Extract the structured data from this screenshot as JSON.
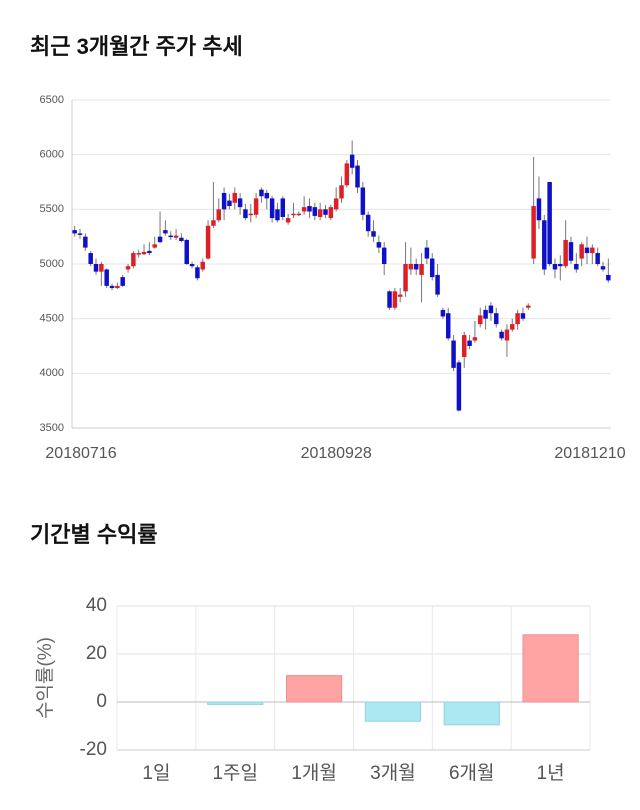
{
  "chart_data": [
    {
      "type": "candlestick",
      "title": "최근 3개월간 주가 추세",
      "categories": [
        "20180716",
        null,
        null,
        null,
        null,
        null,
        null,
        null,
        null,
        null,
        null,
        null,
        null,
        null,
        null,
        null,
        null,
        null,
        null,
        null,
        null,
        null,
        null,
        null,
        null,
        null,
        null,
        null,
        null,
        null,
        null,
        null,
        null,
        null,
        null,
        null,
        null,
        null,
        null,
        null,
        null,
        null,
        null,
        null,
        null,
        null,
        null,
        null,
        null,
        "20180928",
        null,
        null,
        null,
        null,
        null,
        null,
        null,
        null,
        null,
        null,
        null,
        null,
        null,
        null,
        null,
        null,
        null,
        null,
        null,
        null,
        null,
        null,
        null,
        null,
        null,
        null,
        null,
        null,
        null,
        null,
        null,
        null,
        null,
        null,
        null,
        null,
        null,
        null,
        null,
        null,
        null,
        null,
        null,
        null,
        null,
        null,
        null,
        null,
        null,
        null,
        "20181210"
      ],
      "open": [
        5310,
        5280,
        5250,
        5100,
        5000,
        4930,
        4950,
        4800,
        4780,
        4880,
        4950,
        4980,
        5100,
        5090,
        5120,
        5150,
        5250,
        5310,
        5260,
        5240,
        5240,
        5220,
        5000,
        4970,
        4950,
        5050,
        5350,
        5400,
        5650,
        5580,
        5560,
        5600,
        5500,
        5450,
        5450,
        5680,
        5650,
        5600,
        5500,
        5600,
        5380,
        5450,
        5460,
        5480,
        5530,
        5520,
        5430,
        5500,
        5420,
        5500,
        5600,
        5720,
        6000,
        5900,
        5700,
        5450,
        5300,
        5200,
        5150,
        4750,
        4600,
        4700,
        4750,
        4950,
        5000,
        4900,
        5150,
        5050,
        4900,
        4580,
        4550,
        4300,
        4100,
        4150,
        4300,
        4300,
        4450,
        4580,
        4620,
        4550,
        4380,
        4300,
        4400,
        4450,
        4550,
        4600,
        5050,
        5600,
        5400,
        5750,
        5000,
        5000,
        4980,
        5200,
        5000,
        5050,
        5150,
        5100,
        5100,
        4980,
        4900
      ],
      "high": [
        5350,
        5320,
        5280,
        5120,
        5050,
        5020,
        4960,
        4820,
        4830,
        4900,
        5000,
        5120,
        5130,
        5180,
        5200,
        5250,
        5480,
        5400,
        5300,
        5320,
        5280,
        5230,
        5020,
        4990,
        5050,
        5400,
        5750,
        5600,
        5700,
        5640,
        5700,
        5650,
        5550,
        5550,
        5650,
        5700,
        5680,
        5620,
        5560,
        5620,
        5460,
        5560,
        5480,
        5620,
        5600,
        5560,
        5560,
        5540,
        5540,
        5700,
        5800,
        5950,
        6130,
        5950,
        5750,
        5480,
        5400,
        5260,
        5200,
        4760,
        4780,
        4780,
        5200,
        5150,
        5050,
        5100,
        5220,
        5100,
        5000,
        4600,
        4600,
        4350,
        4120,
        4380,
        4350,
        4480,
        4600,
        4620,
        4650,
        4600,
        4400,
        4450,
        4500,
        4580,
        4600,
        4640,
        5980,
        5800,
        5450,
        5750,
        5050,
        5080,
        5400,
        5250,
        5100,
        5200,
        5250,
        5180,
        5150,
        5020,
        5050
      ],
      "low": [
        5250,
        5230,
        5120,
        4980,
        4900,
        4800,
        4780,
        4760,
        4770,
        4790,
        4920,
        4960,
        5060,
        5080,
        5080,
        5140,
        5190,
        5260,
        5220,
        5220,
        5200,
        4990,
        4960,
        4850,
        4930,
        5040,
        5330,
        5380,
        5400,
        5500,
        5500,
        5450,
        5400,
        5380,
        5420,
        5560,
        5500,
        5380,
        5380,
        5400,
        5360,
        5420,
        5440,
        5450,
        5420,
        5400,
        5400,
        5420,
        5400,
        5480,
        5560,
        5700,
        5820,
        5650,
        5400,
        5250,
        5200,
        5100,
        4900,
        4580,
        4580,
        4650,
        4700,
        4900,
        4900,
        4650,
        5000,
        4850,
        4700,
        4500,
        4300,
        4020,
        3650,
        4050,
        4220,
        4280,
        4420,
        4400,
        4480,
        4420,
        4300,
        4150,
        4380,
        4400,
        4480,
        4580,
        5000,
        5320,
        4900,
        4980,
        4870,
        4850,
        4960,
        5000,
        4920,
        4980,
        5000,
        5000,
        4980,
        4930,
        4830
      ],
      "close": [
        5280,
        5270,
        5150,
        5000,
        4930,
        5000,
        4800,
        4780,
        4800,
        4800,
        4980,
        5100,
        5100,
        5110,
        5100,
        5180,
        5200,
        5280,
        5250,
        5260,
        5210,
        5000,
        4980,
        4870,
        5020,
        5350,
        5400,
        5500,
        5500,
        5530,
        5650,
        5520,
        5420,
        5460,
        5600,
        5620,
        5600,
        5420,
        5400,
        5430,
        5420,
        5460,
        5460,
        5520,
        5480,
        5440,
        5500,
        5450,
        5520,
        5600,
        5720,
        5920,
        5880,
        5700,
        5450,
        5300,
        5250,
        5150,
        5000,
        4600,
        4750,
        4720,
        5000,
        5000,
        4950,
        5000,
        5050,
        4880,
        4720,
        4520,
        4320,
        4050,
        3660,
        4350,
        4250,
        4330,
        4530,
        4500,
        4550,
        4450,
        4320,
        4400,
        4450,
        4550,
        4500,
        4620,
        5530,
        5400,
        4950,
        5000,
        4950,
        4980,
        5220,
        5030,
        4950,
        5180,
        5100,
        5150,
        5000,
        4950,
        4850
      ],
      "up_color": "#dd1f26",
      "down_color": "#1010c8",
      "ylim": [
        3500,
        6500
      ],
      "yticks": [
        3500,
        4000,
        4500,
        5000,
        5500,
        6000,
        6500
      ],
      "grid": true
    },
    {
      "type": "bar",
      "title": "기간별 수익률",
      "ylabel": "수익률(%)",
      "categories": [
        "1일",
        "1주일",
        "1개월",
        "3개월",
        "6개월",
        "1년"
      ],
      "values": [
        0,
        -1,
        11,
        -8,
        -9.5,
        28
      ],
      "positive_color": "#ffa3a3",
      "negative_color": "#ace8f2",
      "ylim": [
        -20,
        40
      ],
      "yticks": [
        -20,
        0,
        20,
        40
      ],
      "grid": true
    }
  ]
}
